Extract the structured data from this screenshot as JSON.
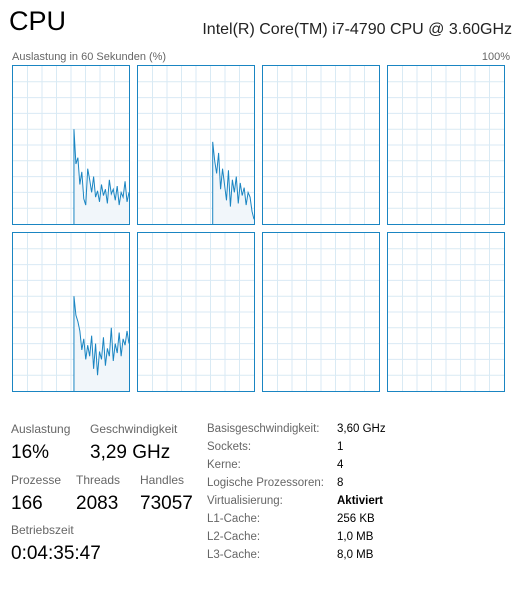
{
  "header": {
    "title": "CPU",
    "cpu_name": "Intel(R) Core(TM) i7-4790 CPU @ 3.60GHz"
  },
  "graph": {
    "caption": "Auslastung in 60 Sekunden (%)",
    "max_label": "100%",
    "line_color": "#1a85c2",
    "fill_color": "#f1f6fa",
    "grid_color": "#d9eaf4"
  },
  "chart_data": {
    "type": "area",
    "ylim": [
      0,
      100
    ],
    "series": [
      {
        "values": [
          0,
          0,
          0,
          0,
          0,
          0,
          0,
          0,
          0,
          0,
          0,
          0,
          0,
          0,
          0,
          0,
          0,
          0,
          0,
          0,
          0,
          0,
          0,
          0,
          0,
          0,
          0,
          0,
          0,
          0,
          0,
          60,
          38,
          42,
          25,
          33,
          16,
          12,
          35,
          28,
          20,
          30,
          17,
          21,
          14,
          25,
          18,
          22,
          13,
          28,
          19,
          22,
          15,
          24,
          12,
          20,
          17,
          27,
          14,
          20
        ]
      },
      {
        "values": [
          0,
          0,
          0,
          0,
          0,
          0,
          0,
          0,
          0,
          0,
          0,
          0,
          0,
          0,
          0,
          0,
          0,
          0,
          0,
          0,
          0,
          0,
          0,
          0,
          0,
          0,
          0,
          0,
          0,
          0,
          0,
          0,
          0,
          0,
          0,
          0,
          0,
          0,
          52,
          40,
          32,
          45,
          22,
          35,
          25,
          15,
          34,
          11,
          28,
          20,
          30,
          13,
          26,
          18,
          23,
          12,
          20,
          17,
          8,
          3
        ]
      },
      {
        "values": [
          0,
          0,
          0,
          0,
          0,
          0,
          0,
          0,
          0,
          0,
          0,
          0,
          0,
          0,
          0,
          0,
          0,
          0,
          0,
          0,
          0,
          0,
          0,
          0,
          0,
          0,
          0,
          0,
          0,
          0,
          0,
          0,
          0,
          0,
          0,
          0,
          0,
          0,
          0,
          0,
          0,
          0,
          0,
          0,
          0,
          0,
          0,
          0,
          0,
          0,
          0,
          0,
          0,
          0,
          0,
          0,
          0,
          0,
          0,
          0
        ]
      },
      {
        "values": [
          0,
          0,
          0,
          0,
          0,
          0,
          0,
          0,
          0,
          0,
          0,
          0,
          0,
          0,
          0,
          0,
          0,
          0,
          0,
          0,
          0,
          0,
          0,
          0,
          0,
          0,
          0,
          0,
          0,
          0,
          0,
          0,
          0,
          0,
          0,
          0,
          0,
          0,
          0,
          0,
          0,
          0,
          0,
          0,
          0,
          0,
          0,
          0,
          0,
          0,
          0,
          0,
          0,
          0,
          0,
          0,
          0,
          0,
          0,
          0
        ]
      },
      {
        "values": [
          0,
          0,
          0,
          0,
          0,
          0,
          0,
          0,
          0,
          0,
          0,
          0,
          0,
          0,
          0,
          0,
          0,
          0,
          0,
          0,
          0,
          0,
          0,
          0,
          0,
          0,
          0,
          0,
          0,
          0,
          0,
          60,
          48,
          44,
          38,
          26,
          33,
          20,
          29,
          22,
          35,
          14,
          30,
          10,
          25,
          20,
          34,
          16,
          27,
          22,
          40,
          19,
          30,
          24,
          37,
          22,
          33,
          29,
          38,
          30
        ]
      },
      {
        "values": [
          0,
          0,
          0,
          0,
          0,
          0,
          0,
          0,
          0,
          0,
          0,
          0,
          0,
          0,
          0,
          0,
          0,
          0,
          0,
          0,
          0,
          0,
          0,
          0,
          0,
          0,
          0,
          0,
          0,
          0,
          0,
          0,
          0,
          0,
          0,
          0,
          0,
          0,
          0,
          0,
          0,
          0,
          0,
          0,
          0,
          0,
          0,
          0,
          0,
          0,
          0,
          0,
          0,
          0,
          0,
          0,
          0,
          0,
          0,
          0
        ]
      },
      {
        "values": [
          0,
          0,
          0,
          0,
          0,
          0,
          0,
          0,
          0,
          0,
          0,
          0,
          0,
          0,
          0,
          0,
          0,
          0,
          0,
          0,
          0,
          0,
          0,
          0,
          0,
          0,
          0,
          0,
          0,
          0,
          0,
          0,
          0,
          0,
          0,
          0,
          0,
          0,
          0,
          0,
          0,
          0,
          0,
          0,
          0,
          0,
          0,
          0,
          0,
          0,
          0,
          0,
          0,
          0,
          0,
          0,
          0,
          0,
          0,
          0
        ]
      },
      {
        "values": [
          0,
          0,
          0,
          0,
          0,
          0,
          0,
          0,
          0,
          0,
          0,
          0,
          0,
          0,
          0,
          0,
          0,
          0,
          0,
          0,
          0,
          0,
          0,
          0,
          0,
          0,
          0,
          0,
          0,
          0,
          0,
          0,
          0,
          0,
          0,
          0,
          0,
          0,
          0,
          0,
          0,
          0,
          0,
          0,
          0,
          0,
          0,
          0,
          0,
          0,
          0,
          0,
          0,
          0,
          0,
          0,
          0,
          0,
          0,
          0
        ]
      }
    ]
  },
  "stats": {
    "auslastung": {
      "label": "Auslastung",
      "value": "16%"
    },
    "geschwindigkeit": {
      "label": "Geschwindigkeit",
      "value": "3,29 GHz"
    },
    "prozesse": {
      "label": "Prozesse",
      "value": "166"
    },
    "threads": {
      "label": "Threads",
      "value": "2083"
    },
    "handles": {
      "label": "Handles",
      "value": "73057"
    },
    "betriebszeit": {
      "label": "Betriebszeit",
      "value": "0:04:35:47"
    }
  },
  "details": [
    {
      "label": "Basisgeschwindigkeit:",
      "value": "3,60 GHz"
    },
    {
      "label": "Sockets:",
      "value": "1"
    },
    {
      "label": "Kerne:",
      "value": "4"
    },
    {
      "label": "Logische Prozessoren:",
      "value": "8"
    },
    {
      "label": "Virtualisierung:",
      "value": "Aktiviert"
    },
    {
      "label": "L1-Cache:",
      "value": "256 KB"
    },
    {
      "label": "L2-Cache:",
      "value": "1,0 MB"
    },
    {
      "label": "L3-Cache:",
      "value": "8,0 MB"
    }
  ]
}
